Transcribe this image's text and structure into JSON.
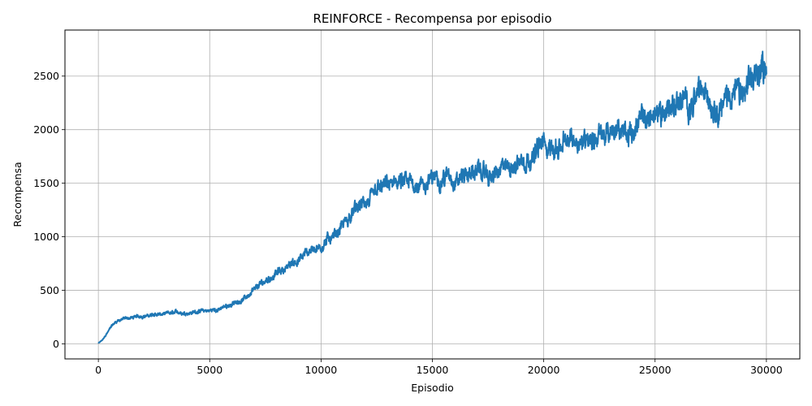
{
  "chart_data": {
    "type": "line",
    "title": "REINFORCE - Recompensa por episodio",
    "xlabel": "Episodio",
    "ylabel": "Recompensa",
    "xlim": [
      -1500,
      31500
    ],
    "ylim": [
      -140,
      2930
    ],
    "xticks": [
      0,
      5000,
      10000,
      15000,
      20000,
      25000,
      30000
    ],
    "xtick_labels": [
      "0",
      "5000",
      "10000",
      "15000",
      "20000",
      "25000",
      "30000"
    ],
    "yticks": [
      0,
      500,
      1000,
      1500,
      2000,
      2500
    ],
    "ytick_labels": [
      "0",
      "500",
      "1000",
      "1500",
      "2000",
      "2500"
    ],
    "grid": true,
    "legend": "none",
    "series": [
      {
        "color": "#1f77b4",
        "x": [
          0,
          200,
          400,
          600,
          800,
          1000,
          1500,
          2000,
          2500,
          3000,
          3500,
          4000,
          4500,
          5000,
          5500,
          6000,
          6500,
          7000,
          7500,
          8000,
          8500,
          9000,
          9500,
          10000,
          10500,
          11000,
          11500,
          12000,
          12500,
          13000,
          13500,
          14000,
          14500,
          15000,
          15500,
          16000,
          16500,
          17000,
          17500,
          18000,
          18500,
          19000,
          19500,
          20000,
          20500,
          21000,
          21500,
          22000,
          22500,
          23000,
          23500,
          24000,
          24500,
          25000,
          25500,
          26000,
          26500,
          27000,
          27500,
          28000,
          28500,
          29000,
          29500,
          30000
        ],
        "y": [
          5,
          40,
          100,
          170,
          210,
          230,
          245,
          260,
          270,
          275,
          285,
          295,
          305,
          310,
          330,
          370,
          420,
          490,
          580,
          660,
          720,
          790,
          880,
          920,
          1010,
          1130,
          1230,
          1300,
          1380,
          1460,
          1490,
          1480,
          1500,
          1530,
          1580,
          1570,
          1600,
          1620,
          1560,
          1580,
          1660,
          1740,
          1800,
          1850,
          1830,
          1860,
          1900,
          1950,
          1970,
          1940,
          1980,
          2030,
          2080,
          2130,
          2200,
          2280,
          2220,
          2330,
          2250,
          2300,
          2380,
          2310,
          2450,
          2660
        ]
      }
    ]
  }
}
